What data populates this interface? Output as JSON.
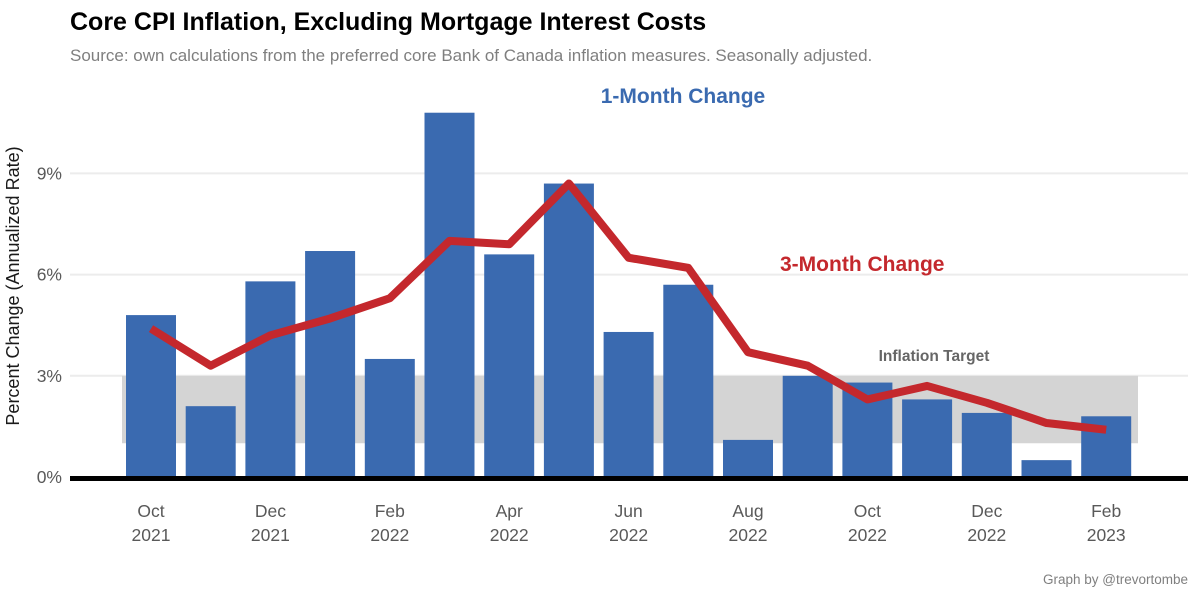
{
  "title": "Core CPI Inflation, Excluding Mortgage Interest Costs",
  "subtitle": "Source: own calculations from the preferred core Bank of Canada inflation measures. Seasonally adjusted.",
  "credit": "Graph by @trevortombe",
  "annotations": {
    "series1_label": "1-Month Change",
    "series2_label": "3-Month Change",
    "band_label": "Inflation Target"
  },
  "colors": {
    "bar_blue": "#3A6AB0",
    "line_red": "#C4282D",
    "band_gray": "#D4D4D4",
    "grid_gray": "#ECECEC",
    "axis_black": "#000000",
    "tick_text": "#595959",
    "target_label_gray": "#666666",
    "subtitle_gray": "#7F7F7F"
  },
  "y_axis": {
    "title": "Percent Change (Annualized Rate)",
    "tick_labels": [
      "0%",
      "3%",
      "6%",
      "9%"
    ],
    "tick_values": [
      0,
      3,
      6,
      9
    ]
  },
  "x_axis": {
    "tick_indices": [
      0,
      2,
      4,
      6,
      8,
      10,
      12,
      14,
      16
    ]
  },
  "chart_data": {
    "type": "bar+line",
    "title": "Core CPI Inflation, Excluding Mortgage Interest Costs",
    "xlabel": "",
    "ylabel": "Percent Change (Annualized Rate)",
    "ylim": [
      0,
      11
    ],
    "grid": "horizontal",
    "legend_position": "inline-annotations",
    "categories": [
      "Oct 2021",
      "Nov 2021",
      "Dec 2021",
      "Jan 2022",
      "Feb 2022",
      "Mar 2022",
      "Apr 2022",
      "May 2022",
      "Jun 2022",
      "Jul 2022",
      "Aug 2022",
      "Sep 2022",
      "Oct 2022",
      "Nov 2022",
      "Dec 2022",
      "Jan 2023",
      "Feb 2023"
    ],
    "series": [
      {
        "name": "1-Month Change",
        "type": "bar",
        "color": "#3A6AB0",
        "values": [
          4.8,
          2.1,
          5.8,
          6.7,
          3.5,
          10.8,
          6.6,
          8.7,
          4.3,
          5.7,
          1.1,
          3.0,
          2.8,
          2.3,
          1.9,
          0.5,
          1.8
        ]
      },
      {
        "name": "3-Month Change",
        "type": "line",
        "color": "#C4282D",
        "values": [
          4.4,
          3.3,
          4.2,
          4.7,
          5.3,
          7.0,
          6.9,
          8.7,
          6.5,
          6.2,
          3.7,
          3.3,
          2.3,
          2.7,
          2.2,
          1.6,
          1.4
        ]
      }
    ],
    "band": {
      "label": "Inflation Target",
      "from": 1,
      "to": 3,
      "color": "#D4D4D4"
    }
  }
}
